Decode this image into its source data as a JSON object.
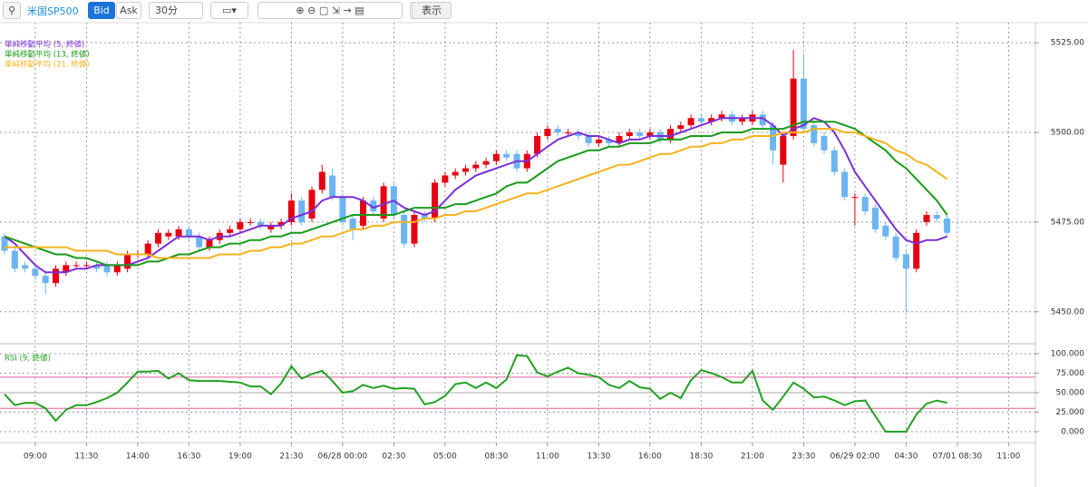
{
  "toolbar": {
    "symbol": "米国SP500",
    "bid": "Bid",
    "ask": "Ask",
    "interval": "30分",
    "view": "表示"
  },
  "chart_data": [
    {
      "type": "candlestick",
      "categories": [
        null,
        null,
        null,
        "09:00",
        null,
        null,
        null,
        null,
        "11:30",
        null,
        null,
        null,
        null,
        "14:00",
        null,
        null,
        null,
        null,
        "16:30",
        null,
        null,
        null,
        null,
        "19:00",
        null,
        null,
        null,
        null,
        "21:30",
        null,
        null,
        null,
        null,
        "06/28 00:00",
        null,
        null,
        null,
        null,
        "02:30",
        null,
        null,
        null,
        null,
        "05:00",
        null,
        null,
        null,
        null,
        "08:30",
        null,
        null,
        null,
        null,
        "11:00",
        null,
        null,
        null,
        null,
        "13:30",
        null,
        null,
        null,
        null,
        "16:00",
        null,
        null,
        null,
        null,
        "18:30",
        null,
        null,
        null,
        null,
        "21:00",
        null,
        null,
        null,
        null,
        "23:30",
        null,
        null,
        null,
        null,
        "06/29 02:00",
        null,
        null,
        null,
        null,
        "04:30",
        null,
        null,
        null,
        null,
        "07/01 08:30",
        null,
        null,
        null,
        null,
        "11:00"
      ],
      "open": [
        5471,
        5467,
        5463,
        5462,
        5460,
        5458,
        5461,
        5463,
        5463,
        5463,
        5463,
        5461,
        5462,
        5466,
        5466,
        5469,
        5471,
        5471,
        5473,
        5471,
        5468,
        5470,
        5472,
        5473,
        5475,
        5475,
        5473,
        5474,
        5475,
        5481,
        5476,
        5484,
        5488,
        5482,
        5476,
        5474,
        5481,
        5476,
        5485,
        5477,
        5469,
        5477,
        5476,
        5486,
        5488,
        5489,
        5490,
        5491,
        5492,
        5494,
        5494,
        5490,
        5494,
        5499,
        5501,
        5500,
        5500,
        5499,
        5497,
        5498,
        5497,
        5499,
        5500,
        5499,
        5500,
        5498,
        5501,
        5502,
        5504,
        5503,
        5504,
        5505,
        5503,
        5503,
        5505,
        5502,
        5491,
        5499,
        5515,
        5502,
        5499,
        5495,
        5489,
        5482,
        5482,
        5479,
        5474,
        5471,
        5466,
        5462,
        5475,
        5477,
        5476,
        null,
        null,
        null,
        null,
        null,
        null
      ],
      "high": [
        5472,
        5468,
        5464,
        5463,
        5461,
        5463,
        5464,
        5464,
        5464,
        5464,
        5464,
        5464,
        5467,
        5467,
        5470,
        5473,
        5473,
        5474,
        5474,
        5472,
        5471,
        5473,
        5474,
        5476,
        5476,
        5476,
        5475,
        5476,
        5483,
        5482,
        5485,
        5491,
        5490,
        5483,
        5477,
        5482,
        5482,
        5486,
        5486,
        5478,
        5478,
        5478,
        5487,
        5489,
        5490,
        5491,
        5492,
        5493,
        5495,
        5495,
        5495,
        5495,
        5500,
        5502,
        5502,
        5501,
        5501,
        5500,
        5499,
        5499,
        5500,
        5501,
        5501,
        5501,
        5501,
        5502,
        5503,
        5505,
        5505,
        5505,
        5506,
        5506,
        5505,
        5506,
        5506,
        5503,
        5500,
        5523,
        5522,
        5503,
        5500,
        5496,
        5490,
        5483,
        5483,
        5480,
        5475,
        5472,
        5467,
        5473,
        5478,
        5478,
        5477,
        null,
        null,
        null,
        null,
        null,
        null
      ],
      "low": [
        5466,
        5461,
        5461,
        5459,
        5455,
        5457,
        5460,
        5462,
        5462,
        5461,
        5460,
        5460,
        5461,
        5465,
        5465,
        5468,
        5470,
        5470,
        5470,
        5467,
        5467,
        5469,
        5471,
        5472,
        5474,
        5473,
        5472,
        5473,
        5474,
        5474,
        5475,
        5483,
        5481,
        5474,
        5470,
        5473,
        5477,
        5475,
        5476,
        5468,
        5468,
        5475,
        5475,
        5485,
        5487,
        5488,
        5489,
        5490,
        5491,
        5492,
        5489,
        5489,
        5493,
        5498,
        5499,
        5499,
        5498,
        5496,
        5496,
        5496,
        5496,
        5498,
        5498,
        5498,
        5497,
        5497,
        5500,
        5501,
        5502,
        5502,
        5503,
        5502,
        5502,
        5502,
        5501,
        5491,
        5486,
        5498,
        5500,
        5496,
        5494,
        5488,
        5481,
        5474,
        5477,
        5472,
        5470,
        5464,
        5450,
        5461,
        5474,
        5475,
        5471,
        null,
        null,
        null,
        null,
        null,
        null
      ],
      "close": [
        5467,
        5462,
        5462,
        5460,
        5458,
        5462,
        5463,
        5463,
        5463,
        5462,
        5461,
        5463,
        5466,
        5466,
        5469,
        5472,
        5472,
        5473,
        5471,
        5468,
        5470,
        5472,
        5473,
        5475,
        5475,
        5474,
        5474,
        5475,
        5481,
        5475,
        5484,
        5489,
        5482,
        5475,
        5473,
        5481,
        5478,
        5485,
        5477,
        5469,
        5477,
        5476,
        5486,
        5488,
        5489,
        5490,
        5491,
        5492,
        5494,
        5493,
        5490,
        5494,
        5499,
        5501,
        5500,
        5500,
        5499,
        5497,
        5498,
        5497,
        5499,
        5500,
        5499,
        5500,
        5498,
        5501,
        5502,
        5504,
        5503,
        5504,
        5505,
        5503,
        5504,
        5505,
        5502,
        5495,
        5499,
        5515,
        5501,
        5497,
        5495,
        5489,
        5482,
        5482,
        5478,
        5473,
        5471,
        5465,
        5462,
        5472,
        5477,
        5476,
        5472,
        null,
        null,
        null,
        null,
        null,
        null
      ],
      "up_color": "#e60012",
      "down_color": "#6cb4f2",
      "series": [
        {
          "name": "単純移動平均 (5, 終値)",
          "color": "#7b2fd6",
          "values": [
            5471,
            5469,
            5466,
            5463,
            5461,
            5461,
            5461,
            5462,
            5462,
            5463,
            5463,
            5463,
            5463,
            5464,
            5465,
            5467,
            5469,
            5471,
            5471,
            5471,
            5470,
            5471,
            5471,
            5472,
            5473,
            5474,
            5474,
            5474,
            5476,
            5477,
            5478,
            5481,
            5482,
            5482,
            5482,
            5481,
            5479,
            5480,
            5481,
            5479,
            5478,
            5477,
            5478,
            5481,
            5484,
            5486,
            5488,
            5489,
            5490,
            5491,
            5492,
            5492,
            5494,
            5496,
            5498,
            5499,
            5500,
            5499,
            5499,
            5498,
            5497,
            5498,
            5498,
            5499,
            5499,
            5499,
            5500,
            5501,
            5502,
            5503,
            5504,
            5504,
            5504,
            5504,
            5504,
            5502,
            5499,
            5501,
            5502,
            5504,
            5503,
            5500,
            5495,
            5489,
            5485,
            5481,
            5477,
            5473,
            5470,
            5469,
            5470,
            5470,
            5471,
            null,
            null,
            null,
            null,
            null,
            null
          ]
        },
        {
          "name": "単純移動平均 (13, 終値)",
          "color": "#1a9a1a",
          "values": [
            5471,
            5470,
            5469,
            5468,
            5467,
            5466,
            5466,
            5465,
            5465,
            5464,
            5463,
            5463,
            5463,
            5463,
            5464,
            5464,
            5465,
            5466,
            5466,
            5467,
            5468,
            5468,
            5469,
            5469,
            5470,
            5470,
            5471,
            5471,
            5472,
            5472,
            5473,
            5474,
            5475,
            5476,
            5477,
            5477,
            5477,
            5477,
            5477,
            5478,
            5479,
            5479,
            5479,
            5479,
            5480,
            5480,
            5481,
            5482,
            5483,
            5485,
            5486,
            5486,
            5488,
            5490,
            5492,
            5493,
            5494,
            5495,
            5495,
            5496,
            5496,
            5497,
            5497,
            5497,
            5498,
            5498,
            5498,
            5499,
            5499,
            5499,
            5500,
            5500,
            5500,
            5501,
            5501,
            5501,
            5501,
            5502,
            5503,
            5503,
            5503,
            5503,
            5502,
            5501,
            5499,
            5497,
            5495,
            5492,
            5490,
            5487,
            5484,
            5481,
            5477,
            null,
            null,
            null,
            null,
            null,
            null
          ]
        },
        {
          "name": "単純移動平均 (21, 終値)",
          "color": "#f5b21f",
          "values": [
            5468,
            5468,
            5468,
            5468,
            5468,
            5468,
            5468,
            5467,
            5467,
            5467,
            5467,
            5466,
            5466,
            5466,
            5466,
            5465,
            5465,
            5465,
            5465,
            5465,
            5465,
            5466,
            5466,
            5466,
            5467,
            5467,
            5468,
            5468,
            5469,
            5469,
            5470,
            5471,
            5471,
            5472,
            5473,
            5473,
            5474,
            5474,
            5475,
            5475,
            5475,
            5476,
            5476,
            5477,
            5477,
            5478,
            5478,
            5479,
            5480,
            5481,
            5482,
            5483,
            5483,
            5484,
            5485,
            5486,
            5487,
            5488,
            5489,
            5490,
            5491,
            5491,
            5492,
            5493,
            5494,
            5494,
            5495,
            5496,
            5496,
            5497,
            5497,
            5498,
            5498,
            5499,
            5499,
            5499,
            5500,
            5500,
            5500,
            5501,
            5501,
            5501,
            5500,
            5500,
            5499,
            5498,
            5497,
            5495,
            5494,
            5492,
            5491,
            5489,
            5487,
            null,
            null,
            null,
            null,
            null,
            null
          ]
        }
      ],
      "ylim": [
        5441.6,
        5530.6
      ],
      "yticks": [
        {
          "value": 5450,
          "label": "5450.00"
        },
        {
          "value": 5475,
          "label": "5475.00"
        },
        {
          "value": 5500,
          "label": "5500.00"
        },
        {
          "value": 5525,
          "label": "5525.00"
        }
      ],
      "grid": true
    },
    {
      "type": "line",
      "series": [
        {
          "name": "RSI (9, 終値)",
          "color": "#23a023",
          "values": [
            48,
            34,
            37,
            37,
            30,
            14,
            28,
            34,
            34,
            38,
            43,
            50,
            63,
            77,
            77,
            78,
            68,
            75,
            66,
            65,
            65,
            65,
            64,
            63,
            58,
            58,
            48,
            62,
            84,
            68,
            74,
            78,
            65,
            50,
            52,
            60,
            56,
            59,
            55,
            56,
            55,
            35,
            38,
            46,
            61,
            63,
            56,
            63,
            56,
            67,
            98,
            97,
            76,
            71,
            77,
            82,
            75,
            73,
            70,
            60,
            56,
            65,
            57,
            55,
            42,
            50,
            43,
            66,
            79,
            75,
            70,
            63,
            63,
            78,
            40,
            28,
            45,
            63,
            55,
            44,
            45,
            40,
            34,
            39,
            40,
            20,
            0,
            0,
            0,
            22,
            36,
            40,
            37,
            null,
            null,
            null,
            null,
            null,
            null
          ]
        }
      ],
      "levels": [
        {
          "value": 70,
          "color": "#e0609a"
        },
        {
          "value": 50,
          "color": "#aaaaaa"
        },
        {
          "value": 30,
          "color": "#e0609a"
        }
      ],
      "ylim": [
        -11.6,
        110.5
      ],
      "yticks": [
        {
          "value": 0,
          "label": "0.000"
        },
        {
          "value": 25,
          "label": "25.000"
        },
        {
          "value": 50,
          "label": "50.000"
        },
        {
          "value": 75,
          "label": "75.000"
        },
        {
          "value": 100,
          "label": "100.000"
        }
      ],
      "grid": true
    }
  ]
}
